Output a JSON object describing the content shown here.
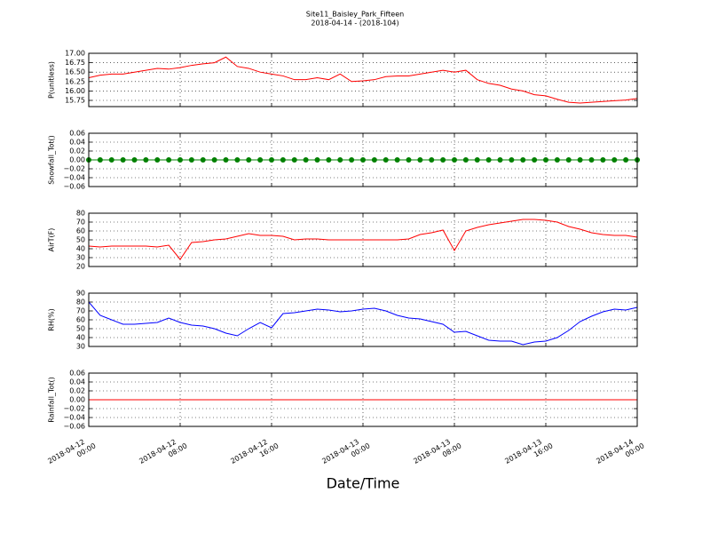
{
  "chart_data": [
    {
      "type": "line",
      "title": "Site11_Baisley_Park_Fifteen",
      "subtitle": "2018-04-14 - (2018-104)",
      "ylabel": "P(unitless)",
      "ylim": [
        15.585,
        17.0
      ],
      "yticks": [
        {
          "value": 15.75,
          "label": "15.75"
        },
        {
          "value": 16.0,
          "label": "16.00"
        },
        {
          "value": 16.25,
          "label": "16.25"
        },
        {
          "value": 16.5,
          "label": "16.50"
        },
        {
          "value": 16.75,
          "label": "16.75"
        },
        {
          "value": 17.0,
          "label": "17.00"
        }
      ],
      "grid": true,
      "series": [
        {
          "color": "#ff0000",
          "values": [
            16.35,
            16.42,
            16.45,
            16.45,
            16.5,
            16.55,
            16.6,
            16.58,
            16.62,
            16.68,
            16.72,
            16.75,
            16.9,
            16.65,
            16.6,
            16.5,
            16.45,
            16.4,
            16.3,
            16.3,
            16.35,
            16.3,
            16.45,
            16.25,
            16.27,
            16.3,
            16.38,
            16.4,
            16.4,
            16.45,
            16.5,
            16.55,
            16.5,
            16.55,
            16.3,
            16.2,
            16.15,
            16.05,
            16.0,
            15.9,
            15.87,
            15.78,
            15.7,
            15.68,
            15.7,
            15.72,
            15.74,
            15.76,
            15.8
          ]
        }
      ]
    },
    {
      "type": "line",
      "ylabel": "Snowfall_Tot()",
      "ylim": [
        -0.06,
        0.06
      ],
      "yticks": [
        {
          "value": -0.06,
          "label": "−0.06"
        },
        {
          "value": -0.04,
          "label": "−0.04"
        },
        {
          "value": -0.02,
          "label": "−0.02"
        },
        {
          "value": 0,
          "label": "0.00"
        },
        {
          "value": 0.02,
          "label": "0.02"
        },
        {
          "value": 0.04,
          "label": "0.04"
        },
        {
          "value": 0.06,
          "label": "0.06"
        }
      ],
      "grid": true,
      "series": [
        {
          "color": "#008000",
          "marker": "o",
          "values": [
            0,
            0,
            0,
            0,
            0,
            0,
            0,
            0,
            0,
            0,
            0,
            0,
            0,
            0,
            0,
            0,
            0,
            0,
            0,
            0,
            0,
            0,
            0,
            0,
            0,
            0,
            0,
            0,
            0,
            0,
            0,
            0,
            0,
            0,
            0,
            0,
            0,
            0,
            0,
            0,
            0,
            0,
            0,
            0,
            0,
            0,
            0,
            0,
            0
          ]
        }
      ]
    },
    {
      "type": "line",
      "ylabel": "AirT(F)",
      "ylim": [
        20,
        80
      ],
      "yticks": [
        20,
        30,
        40,
        50,
        60,
        70,
        80
      ],
      "grid": true,
      "series": [
        {
          "color": "#ff0000",
          "values": [
            43,
            42,
            43,
            43,
            43,
            43,
            42,
            44,
            28,
            47,
            48,
            50,
            51,
            54,
            57,
            55,
            55,
            54,
            50,
            51,
            51,
            50,
            50,
            50,
            50,
            50,
            50,
            50,
            51,
            56,
            58,
            61,
            38,
            60,
            64,
            67,
            69,
            71,
            73,
            73,
            72,
            70,
            65,
            62,
            58,
            56,
            55,
            55,
            53
          ]
        }
      ]
    },
    {
      "type": "line",
      "ylabel": "RH(%)",
      "ylim": [
        30,
        90
      ],
      "yticks": [
        30,
        40,
        50,
        60,
        70,
        80,
        90
      ],
      "grid": true,
      "series": [
        {
          "color": "#0000ff",
          "values": [
            80,
            65,
            60,
            55,
            55,
            56,
            57,
            62,
            57,
            54,
            53,
            50,
            45,
            42,
            50,
            57,
            51,
            67,
            68,
            70,
            72,
            71,
            69,
            70,
            72,
            73,
            70,
            65,
            62,
            61,
            58,
            55,
            46,
            47,
            42,
            37,
            36,
            36,
            32,
            35,
            36,
            40,
            48,
            58,
            64,
            69,
            72,
            71,
            74
          ]
        }
      ]
    },
    {
      "type": "line",
      "ylabel": "Rainfall_Tot()",
      "xlabel": "Date/Time",
      "ylim": [
        -0.06,
        0.06
      ],
      "yticks": [
        {
          "value": -0.06,
          "label": "−0.06"
        },
        {
          "value": -0.04,
          "label": "−0.04"
        },
        {
          "value": -0.02,
          "label": "−0.02"
        },
        {
          "value": 0,
          "label": "0.00"
        },
        {
          "value": 0.02,
          "label": "0.02"
        },
        {
          "value": 0.04,
          "label": "0.04"
        },
        {
          "value": 0.06,
          "label": "0.06"
        }
      ],
      "grid": true,
      "xlim": [
        "2018-04-12 00:00",
        "2018-04-14 00:00"
      ],
      "xticks": [
        "2018-04-12 00:00",
        "2018-04-12 08:00",
        "2018-04-12 16:00",
        "2018-04-13 00:00",
        "2018-04-13 08:00",
        "2018-04-13 16:00",
        "2018-04-14 00:00"
      ],
      "x": [
        "2018-04-12 00:00",
        "2018-04-12 01:00",
        "2018-04-12 02:00",
        "2018-04-12 03:00",
        "2018-04-12 04:00",
        "2018-04-12 05:00",
        "2018-04-12 06:00",
        "2018-04-12 07:00",
        "2018-04-12 08:00",
        "2018-04-12 09:00",
        "2018-04-12 10:00",
        "2018-04-12 11:00",
        "2018-04-12 12:00",
        "2018-04-12 13:00",
        "2018-04-12 14:00",
        "2018-04-12 15:00",
        "2018-04-12 16:00",
        "2018-04-12 17:00",
        "2018-04-12 18:00",
        "2018-04-12 19:00",
        "2018-04-12 20:00",
        "2018-04-12 21:00",
        "2018-04-12 22:00",
        "2018-04-12 23:00",
        "2018-04-13 00:00",
        "2018-04-13 01:00",
        "2018-04-13 02:00",
        "2018-04-13 03:00",
        "2018-04-13 04:00",
        "2018-04-13 05:00",
        "2018-04-13 06:00",
        "2018-04-13 07:00",
        "2018-04-13 08:00",
        "2018-04-13 09:00",
        "2018-04-13 10:00",
        "2018-04-13 11:00",
        "2018-04-13 12:00",
        "2018-04-13 13:00",
        "2018-04-13 14:00",
        "2018-04-13 15:00",
        "2018-04-13 16:00",
        "2018-04-13 17:00",
        "2018-04-13 18:00",
        "2018-04-13 19:00",
        "2018-04-13 20:00",
        "2018-04-13 21:00",
        "2018-04-13 22:00",
        "2018-04-13 23:00",
        "2018-04-14 00:00"
      ],
      "series": [
        {
          "color": "#ff0000",
          "values": [
            0,
            0,
            0,
            0,
            0,
            0,
            0,
            0,
            0,
            0,
            0,
            0,
            0,
            0,
            0,
            0,
            0,
            0,
            0,
            0,
            0,
            0,
            0,
            0,
            0,
            0,
            0,
            0,
            0,
            0,
            0,
            0,
            0,
            0,
            0,
            0,
            0,
            0,
            0,
            0,
            0,
            0,
            0,
            0,
            0,
            0,
            0,
            0,
            0
          ]
        }
      ]
    }
  ]
}
